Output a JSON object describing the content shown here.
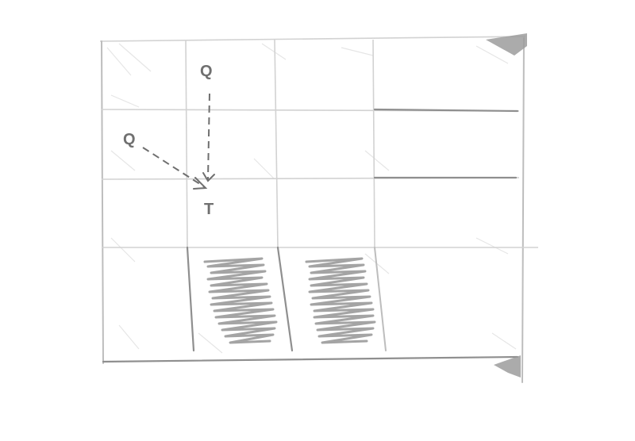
{
  "diagram": {
    "nodes": [
      {
        "id": "q1",
        "label": "Q"
      },
      {
        "id": "q2",
        "label": "Q"
      },
      {
        "id": "t",
        "label": "T"
      }
    ],
    "edges": [
      {
        "from": "q1",
        "to": "t",
        "style": "dashed"
      },
      {
        "from": "q2",
        "to": "t",
        "style": "dashed"
      }
    ],
    "colors": {
      "grid": "#d2d2d2",
      "ink": "#6f6f6f",
      "scribble": "#9a9a9a"
    }
  }
}
